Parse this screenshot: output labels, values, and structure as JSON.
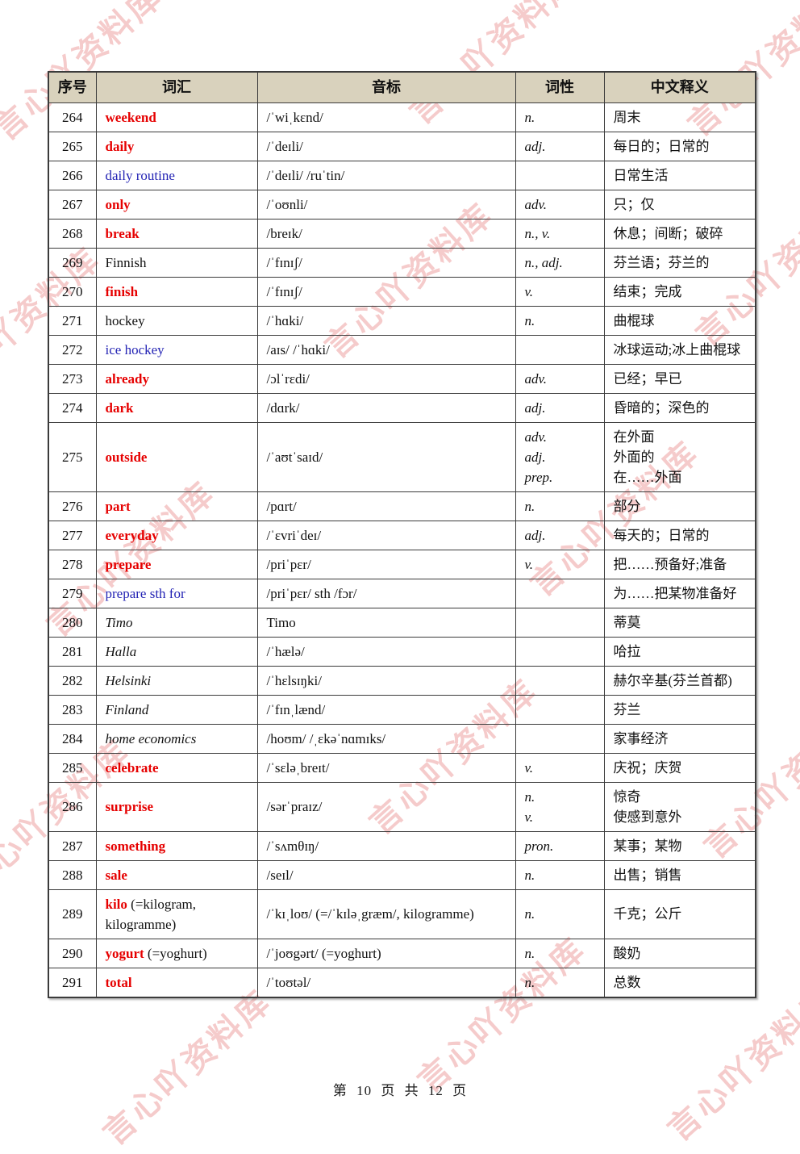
{
  "watermark": {
    "text": "言心吖资料库"
  },
  "colors": {
    "red": "#e60000",
    "blue": "#2323b4",
    "header_bg": "#d9d2bd",
    "watermark": "#e77979"
  },
  "footer": {
    "text": "第 10 页 共 12 页"
  },
  "table": {
    "headers": [
      "序号",
      "词汇",
      "音标",
      "词性",
      "中文释义"
    ],
    "rows": [
      {
        "no": "264",
        "word": "weekend",
        "style": "red",
        "suffix": "",
        "phonetic": "/ˈwiˌkɛnd/",
        "pos": [
          "n."
        ],
        "meaning": [
          "周末"
        ]
      },
      {
        "no": "265",
        "word": "daily",
        "style": "red",
        "suffix": "",
        "phonetic": "/ˈdeɪli/",
        "pos": [
          "adj."
        ],
        "meaning": [
          "每日的；日常的"
        ]
      },
      {
        "no": "266",
        "word": "daily routine",
        "style": "blue",
        "suffix": "",
        "phonetic": "/ˈdeɪli/ /ruˈtin/",
        "pos": [],
        "meaning": [
          "日常生活"
        ]
      },
      {
        "no": "267",
        "word": "only",
        "style": "red",
        "suffix": "",
        "phonetic": "/ˈoʊnli/",
        "pos": [
          "adv."
        ],
        "meaning": [
          "只；仅"
        ]
      },
      {
        "no": "268",
        "word": "break",
        "style": "red",
        "suffix": "",
        "phonetic": "/breɪk/",
        "pos": [
          "n., v."
        ],
        "meaning": [
          "休息；间断；破碎"
        ]
      },
      {
        "no": "269",
        "word": "Finnish",
        "style": "plain",
        "suffix": "",
        "phonetic": "/ˈfɪnɪʃ/",
        "pos": [
          "n., adj."
        ],
        "meaning": [
          "芬兰语；芬兰的"
        ]
      },
      {
        "no": "270",
        "word": "finish",
        "style": "red",
        "suffix": "",
        "phonetic": "/ˈfɪnɪʃ/",
        "pos": [
          "v."
        ],
        "meaning": [
          "结束；完成"
        ]
      },
      {
        "no": "271",
        "word": "hockey",
        "style": "plain",
        "suffix": "",
        "phonetic": "/ˈhɑki/",
        "pos": [
          "n."
        ],
        "meaning": [
          "曲棍球"
        ]
      },
      {
        "no": "272",
        "word": "ice hockey",
        "style": "blue",
        "suffix": "",
        "phonetic": "/aɪs/ /ˈhɑki/",
        "pos": [],
        "meaning": [
          "冰球运动;冰上曲棍球"
        ]
      },
      {
        "no": "273",
        "word": "already",
        "style": "red",
        "suffix": "",
        "phonetic": "/ɔlˈrɛdi/",
        "pos": [
          "adv."
        ],
        "meaning": [
          "已经；早已"
        ]
      },
      {
        "no": "274",
        "word": "dark",
        "style": "red",
        "suffix": "",
        "phonetic": "/dɑrk/",
        "pos": [
          "adj."
        ],
        "meaning": [
          "昏暗的；深色的"
        ]
      },
      {
        "no": "275",
        "word": "outside",
        "style": "red",
        "suffix": "",
        "phonetic": "/ˈaʊtˈsaɪd/",
        "pos": [
          "adv.",
          "adj.",
          "prep."
        ],
        "meaning": [
          "在外面",
          "外面的",
          "在……外面"
        ]
      },
      {
        "no": "276",
        "word": "part",
        "style": "red",
        "suffix": "",
        "phonetic": "/pɑrt/",
        "pos": [
          "n."
        ],
        "meaning": [
          "部分"
        ]
      },
      {
        "no": "277",
        "word": "everyday",
        "style": "red",
        "suffix": "",
        "phonetic": "/ˈɛvriˈdeɪ/",
        "pos": [
          "adj."
        ],
        "meaning": [
          "每天的；日常的"
        ]
      },
      {
        "no": "278",
        "word": "prepare",
        "style": "red",
        "suffix": "",
        "phonetic": "/priˈpɛr/",
        "pos": [
          "v."
        ],
        "meaning": [
          "把……预备好;准备"
        ]
      },
      {
        "no": "279",
        "word": "prepare sth for",
        "style": "blue",
        "suffix": "",
        "phonetic": "/priˈpɛr/ sth /fɔr/",
        "pos": [],
        "meaning": [
          "为……把某物准备好"
        ]
      },
      {
        "no": "280",
        "word": "Timo",
        "style": "italic",
        "suffix": "",
        "phonetic": "Timo",
        "pos": [],
        "meaning": [
          "蒂莫"
        ]
      },
      {
        "no": "281",
        "word": "Halla",
        "style": "italic",
        "suffix": "",
        "phonetic": "/ˈhælə/",
        "pos": [],
        "meaning": [
          "哈拉"
        ]
      },
      {
        "no": "282",
        "word": "Helsinki",
        "style": "italic",
        "suffix": "",
        "phonetic": "/ˈhɛlsɪŋki/",
        "pos": [],
        "meaning": [
          "赫尔辛基(芬兰首都)"
        ]
      },
      {
        "no": "283",
        "word": "Finland",
        "style": "italic",
        "suffix": "",
        "phonetic": "/ˈfɪnˌlænd/",
        "pos": [],
        "meaning": [
          "芬兰"
        ]
      },
      {
        "no": "284",
        "word": "home economics",
        "style": "italic",
        "suffix": "",
        "phonetic": "/hoʊm/ /ˌɛkəˈnɑmɪks/",
        "pos": [],
        "meaning": [
          "家事经济"
        ]
      },
      {
        "no": "285",
        "word": "celebrate",
        "style": "red",
        "suffix": "",
        "phonetic": "/ˈsɛləˌbreɪt/",
        "pos": [
          "v."
        ],
        "meaning": [
          "庆祝；庆贺"
        ]
      },
      {
        "no": "286",
        "word": "surprise",
        "style": "red",
        "suffix": "",
        "phonetic": "/sərˈpraɪz/",
        "pos": [
          "n.",
          "v."
        ],
        "meaning": [
          "惊奇",
          "使感到意外"
        ]
      },
      {
        "no": "287",
        "word": "something",
        "style": "red",
        "suffix": "",
        "phonetic": "/ˈsʌmθɪŋ/",
        "pos": [
          "pron."
        ],
        "meaning": [
          "某事；某物"
        ]
      },
      {
        "no": "288",
        "word": "sale",
        "style": "red",
        "suffix": "",
        "phonetic": "/seɪl/",
        "pos": [
          "n."
        ],
        "meaning": [
          "出售；销售"
        ]
      },
      {
        "no": "289",
        "word": "kilo",
        "style": "red",
        "suffix": " (=kilogram, kilogramme)",
        "phonetic": "/ˈkɪˌloʊ/ (=/ˈkɪləˌgræm/, kilogramme)",
        "pos": [
          "n."
        ],
        "meaning": [
          "千克；公斤"
        ]
      },
      {
        "no": "290",
        "word": "yogurt",
        "style": "red",
        "suffix": " (=yoghurt)",
        "phonetic": "/ˈjoʊgərt/ (=yoghurt)",
        "pos": [
          "n."
        ],
        "meaning": [
          "酸奶"
        ]
      },
      {
        "no": "291",
        "word": "total",
        "style": "red",
        "suffix": "",
        "phonetic": "/ˈtoʊtəl/",
        "pos": [
          "n."
        ],
        "meaning": [
          "总数"
        ]
      }
    ]
  }
}
